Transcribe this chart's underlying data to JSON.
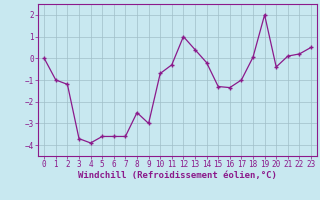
{
  "x": [
    0,
    1,
    2,
    3,
    4,
    5,
    6,
    7,
    8,
    9,
    10,
    11,
    12,
    13,
    14,
    15,
    16,
    17,
    18,
    19,
    20,
    21,
    22,
    23
  ],
  "y": [
    0.0,
    -1.0,
    -1.2,
    -3.7,
    -3.9,
    -3.6,
    -3.6,
    -3.6,
    -2.5,
    -3.0,
    -0.7,
    -0.3,
    1.0,
    0.4,
    -0.2,
    -1.3,
    -1.35,
    -1.0,
    0.05,
    2.0,
    -0.4,
    0.1,
    0.2,
    0.5
  ],
  "line_color": "#8b1a8b",
  "marker": "+",
  "bg_color": "#c8e8f0",
  "grid_color": "#a0bfc8",
  "xlabel": "Windchill (Refroidissement éolien,°C)",
  "ylabel": "",
  "ylim": [
    -4.5,
    2.5
  ],
  "xlim": [
    -0.5,
    23.5
  ],
  "yticks": [
    -4,
    -3,
    -2,
    -1,
    0,
    1,
    2
  ],
  "xticks": [
    0,
    1,
    2,
    3,
    4,
    5,
    6,
    7,
    8,
    9,
    10,
    11,
    12,
    13,
    14,
    15,
    16,
    17,
    18,
    19,
    20,
    21,
    22,
    23
  ],
  "tick_fontsize": 5.5,
  "xlabel_fontsize": 6.5,
  "spine_color": "#8b1a8b"
}
